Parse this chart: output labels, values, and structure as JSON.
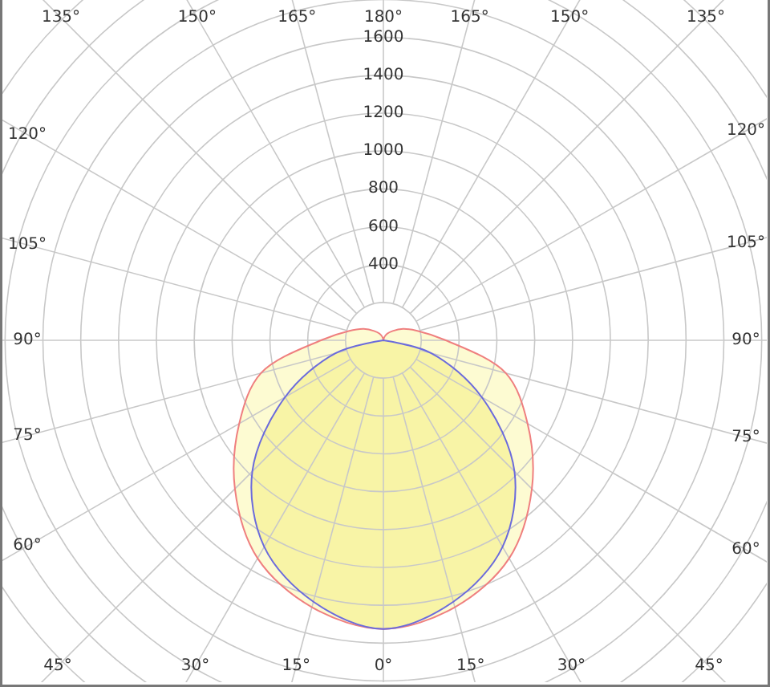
{
  "chart_data": {
    "type": "radar",
    "categories": [
      "180°",
      "165°",
      "150°",
      "135°",
      "120°",
      "105°",
      "90°",
      "75°",
      "60°",
      "45°",
      "30°",
      "15°",
      "0°",
      "15°",
      "30°",
      "45°",
      "60°",
      "75°",
      "90°",
      "105°",
      "120°",
      "135°",
      "150°",
      "165°"
    ],
    "series": [
      {
        "color": "#ef7f7f",
        "values": [
          0,
          15,
          40,
          70,
          120,
          190,
          330,
          670,
          880,
          1110,
          1330,
          1460,
          1525,
          1460,
          1330,
          1110,
          880,
          670,
          330,
          190,
          120,
          70,
          40,
          15
        ]
      },
      {
        "color": "#6b6bdc",
        "values": [
          0,
          0,
          0,
          0,
          0,
          0,
          0,
          260,
          600,
          980,
          1260,
          1430,
          1525,
          1430,
          1260,
          980,
          600,
          260,
          0,
          0,
          0,
          0,
          0,
          0
        ]
      }
    ],
    "ylim": [
      0,
      2400
    ],
    "yticks": [
      400,
      600,
      800,
      1000,
      1200,
      1400,
      1600
    ],
    "grid": true
  }
}
